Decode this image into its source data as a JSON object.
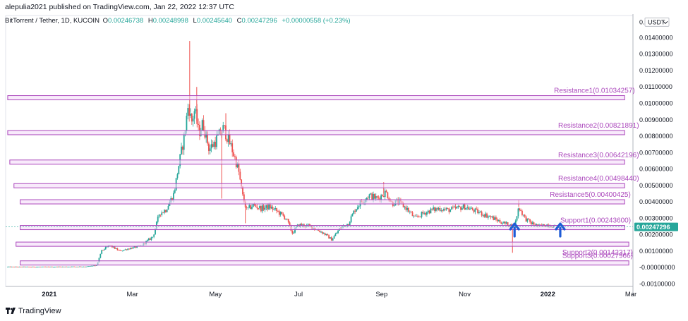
{
  "header": {
    "published_by": "alepulia2021 published on TradingView.com, Jan 22, 2022 12:37 UTC"
  },
  "legend": {
    "symbol": "BitTorrent / Tether, 1D, KUCOIN",
    "open_label": "O",
    "open": "0.00246738",
    "high_label": "H",
    "high": "0.00248998",
    "low_label": "L",
    "low": "0.00245640",
    "close_label": "C",
    "close": "0.00247296",
    "change": "+0.00000558 (+0.23%)"
  },
  "footer": {
    "brand": "TradingView",
    "logo_icon": "tradingview-logo-icon"
  },
  "colors": {
    "up": "#26a69a",
    "down": "#ef5350",
    "level": "#ab47bc",
    "level_fill": "#f3d9f7",
    "arrow": "#1e5bd6",
    "price_tag": "#26a69a"
  },
  "chart_data": {
    "type": "candlestick",
    "currency_label": "USDT",
    "y_axis_top_tick": "0.0",
    "yticks": [
      "0.01400000",
      "0.01300000",
      "0.01200000",
      "0.01100000",
      "0.01000000",
      "0.00900000",
      "0.00800000",
      "0.00700000",
      "0.00600000",
      "0.00500000",
      "0.00400000",
      "0.00300000",
      "0.00200000",
      "0.00100000",
      "-0.00000000",
      "-0.00100000"
    ],
    "ytick_values": [
      0.014,
      0.013,
      0.012,
      0.011,
      0.01,
      0.009,
      0.008,
      0.007,
      0.006,
      0.005,
      0.004,
      0.003,
      0.002,
      0.001,
      0.0,
      -0.001
    ],
    "ylim": [
      -0.00115,
      0.01535
    ],
    "xticks": [
      "2021",
      "Mar",
      "May",
      "Jul",
      "Sep",
      "Nov",
      "2022",
      "Mar"
    ],
    "xtick_months": [
      0,
      2,
      4,
      6,
      8,
      10,
      12,
      14
    ],
    "xlim_months": [
      -1.05,
      14.05
    ],
    "last_price_tag": "0.00247296",
    "last_price": 0.00247296,
    "price_path": [
      [
        -1.0,
        4e-05
      ],
      [
        0.0,
        4e-05
      ],
      [
        0.9,
        6e-05
      ],
      [
        1.15,
        0.00014
      ],
      [
        1.25,
        0.001
      ],
      [
        1.45,
        0.00135
      ],
      [
        1.7,
        0.001
      ],
      [
        1.9,
        0.00115
      ],
      [
        2.2,
        0.0013
      ],
      [
        2.5,
        0.0019
      ],
      [
        2.65,
        0.0033
      ],
      [
        2.8,
        0.0035
      ],
      [
        3.0,
        0.0045
      ],
      [
        3.1,
        0.006
      ],
      [
        3.25,
        0.008
      ],
      [
        3.35,
        0.01
      ],
      [
        3.42,
        0.0088
      ],
      [
        3.5,
        0.0096
      ],
      [
        3.6,
        0.0082
      ],
      [
        3.7,
        0.0088
      ],
      [
        3.85,
        0.0072
      ],
      [
        4.0,
        0.0077
      ],
      [
        4.2,
        0.0085
      ],
      [
        4.4,
        0.0072
      ],
      [
        4.55,
        0.006
      ],
      [
        4.65,
        0.0044
      ],
      [
        4.75,
        0.0035
      ],
      [
        4.9,
        0.0038
      ],
      [
        5.1,
        0.0036
      ],
      [
        5.3,
        0.0037
      ],
      [
        5.5,
        0.0034
      ],
      [
        5.7,
        0.003
      ],
      [
        5.85,
        0.0021
      ],
      [
        6.0,
        0.0026
      ],
      [
        6.3,
        0.0025
      ],
      [
        6.6,
        0.0021
      ],
      [
        6.8,
        0.0017
      ],
      [
        7.0,
        0.0024
      ],
      [
        7.2,
        0.0027
      ],
      [
        7.35,
        0.0035
      ],
      [
        7.5,
        0.004
      ],
      [
        7.7,
        0.0044
      ],
      [
        7.9,
        0.0042
      ],
      [
        8.0,
        0.0044
      ],
      [
        8.1,
        0.0046
      ],
      [
        8.25,
        0.0039
      ],
      [
        8.4,
        0.004
      ],
      [
        8.6,
        0.0036
      ],
      [
        8.8,
        0.003
      ],
      [
        9.0,
        0.0033
      ],
      [
        9.2,
        0.0035
      ],
      [
        9.4,
        0.0036
      ],
      [
        9.6,
        0.0035
      ],
      [
        9.8,
        0.0036
      ],
      [
        10.0,
        0.0037
      ],
      [
        10.2,
        0.0035
      ],
      [
        10.4,
        0.0033
      ],
      [
        10.6,
        0.0031
      ],
      [
        10.85,
        0.0028
      ],
      [
        11.05,
        0.0026
      ],
      [
        11.2,
        0.0025
      ],
      [
        11.3,
        0.0037
      ],
      [
        11.45,
        0.003
      ],
      [
        11.6,
        0.0027
      ],
      [
        11.8,
        0.0025
      ],
      [
        12.0,
        0.00262
      ],
      [
        12.2,
        0.00247
      ]
    ],
    "spikes": [
      [
        3.38,
        0.0138
      ],
      [
        3.55,
        0.011
      ],
      [
        4.25,
        0.0094
      ],
      [
        4.15,
        0.0042
      ],
      [
        4.72,
        0.0027
      ],
      [
        8.05,
        0.0052
      ],
      [
        11.15,
        0.0009
      ],
      [
        11.3,
        0.0041
      ]
    ],
    "levels": [
      {
        "name": "Resistance1(0.01034257)",
        "value": 0.01034257,
        "x_start": -1.0,
        "x_end": 13.85,
        "label_x": 12.15,
        "label_pos": "above"
      },
      {
        "name": "Resistance2(0.00821891)",
        "value": 0.00821891,
        "x_start": -1.0,
        "x_end": 13.85,
        "label_x": 12.25,
        "label_pos": "above"
      },
      {
        "name": "Resistance3(0.00642196)",
        "value": 0.00642196,
        "x_start": -0.95,
        "x_end": 13.85,
        "label_x": 12.25,
        "label_pos": "above"
      },
      {
        "name": "Resistance4(0.00498440)",
        "value": 0.0049844,
        "x_start": -0.85,
        "x_end": 13.85,
        "label_x": 12.25,
        "label_pos": "above"
      },
      {
        "name": "Resistance5(0.00400425)",
        "value": 0.00400425,
        "x_start": -0.7,
        "x_end": 13.85,
        "label_x": 12.05,
        "label_pos": "above"
      },
      {
        "name": "Support1(0.00243600)",
        "value": 0.002436,
        "x_start": -0.7,
        "x_end": 13.85,
        "label_x": 12.3,
        "label_pos": "above"
      },
      {
        "name": "Support2(0.00142317)",
        "value": 0.00142317,
        "x_start": -0.8,
        "x_end": 13.95,
        "label_x": 12.35,
        "label_pos": "below"
      },
      {
        "name": "Support3(0.00027966)",
        "value": 0.00027966,
        "x_start": -0.7,
        "x_end": 13.95,
        "label_x": 12.35,
        "label_pos": "above"
      }
    ],
    "arrows": [
      [
        11.2,
        0.0019
      ],
      [
        12.3,
        0.0019
      ]
    ]
  }
}
